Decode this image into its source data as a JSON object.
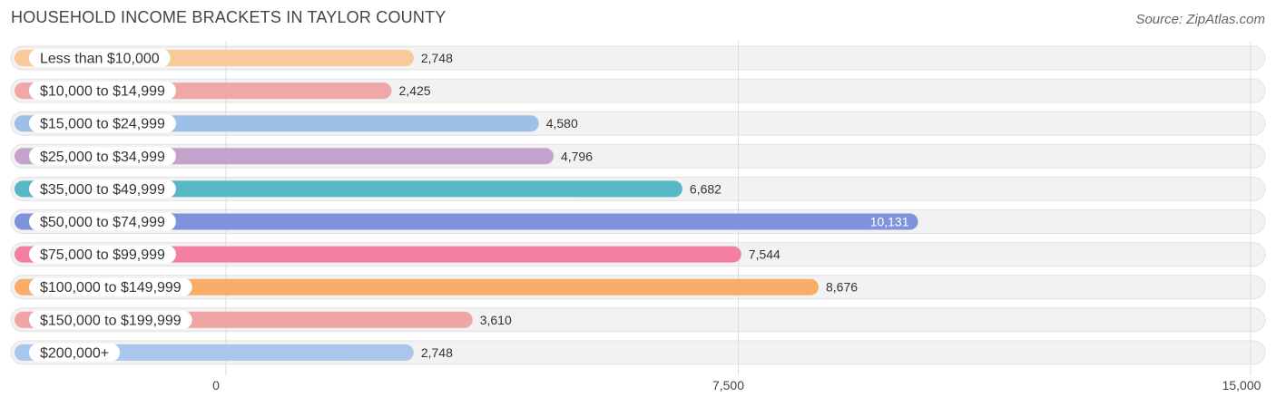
{
  "header": {
    "title": "HOUSEHOLD INCOME BRACKETS IN TAYLOR COUNTY",
    "source": "Source: ZipAtlas.com"
  },
  "chart_data": {
    "type": "bar",
    "orientation": "horizontal",
    "title": "HOUSEHOLD INCOME BRACKETS IN TAYLOR COUNTY",
    "categories": [
      "Less than $10,000",
      "$10,000 to $14,999",
      "$15,000 to $24,999",
      "$25,000 to $34,999",
      "$35,000 to $49,999",
      "$50,000 to $74,999",
      "$75,000 to $99,999",
      "$100,000 to $149,999",
      "$150,000 to $199,999",
      "$200,000+"
    ],
    "values": [
      2748,
      2425,
      4580,
      4796,
      6682,
      10131,
      7544,
      8676,
      3610,
      2748
    ],
    "value_labels": [
      "2,748",
      "2,425",
      "4,580",
      "4,796",
      "6,682",
      "10,131",
      "7,544",
      "8,676",
      "3,610",
      "2,748"
    ],
    "colors": [
      "#f9c99a",
      "#f0a7a7",
      "#9dbfe8",
      "#c3a3cc",
      "#56b8c4",
      "#7f93dc",
      "#f57fa2",
      "#f8ad68",
      "#eea5a4",
      "#a9c6ec"
    ],
    "xlim": [
      0,
      15000
    ],
    "xticks": [
      0,
      7500,
      15000
    ],
    "xtick_labels": [
      "0",
      "7,500",
      "15,000"
    ],
    "grid": true,
    "legend": "none"
  }
}
